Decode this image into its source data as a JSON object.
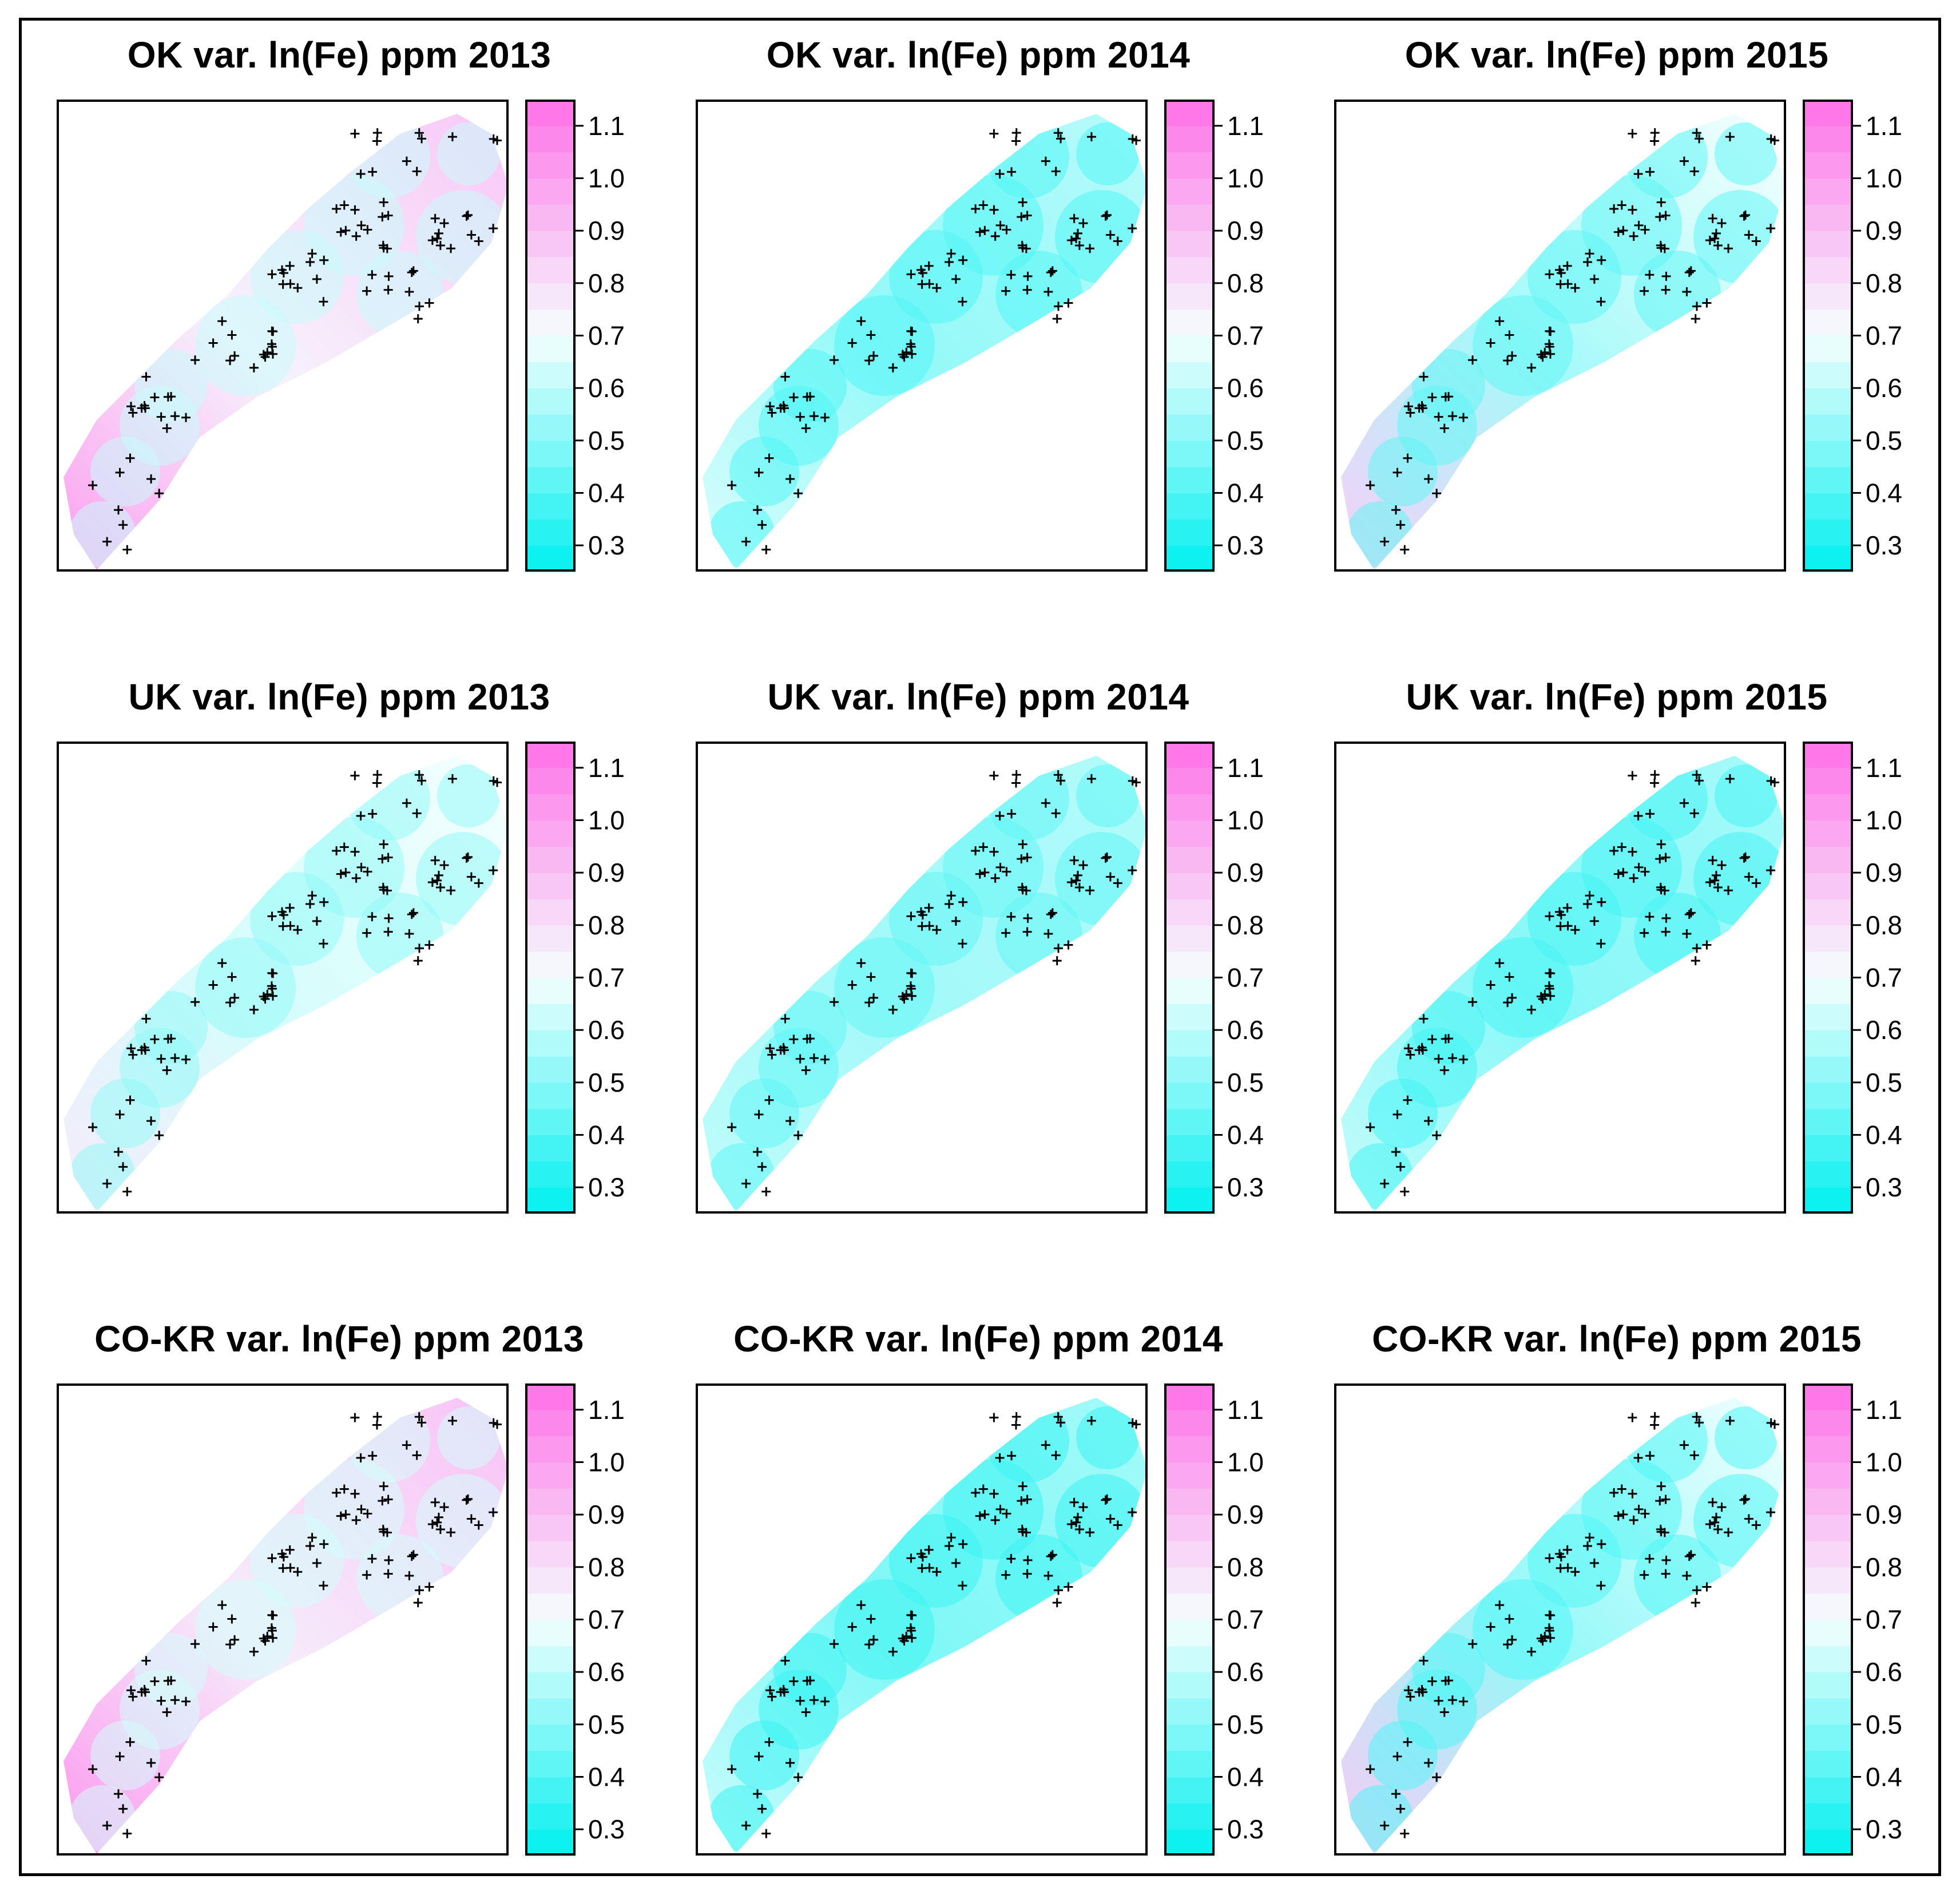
{
  "figure": {
    "variable": "ln(Fe) ppm",
    "years": [
      "2013",
      "2014",
      "2015"
    ],
    "methods": [
      "OK",
      "UK",
      "CO-KR"
    ]
  },
  "colors": {
    "low": "#00f0f0",
    "mid": "#f5fffe",
    "high": "#ff70e8",
    "point": "#000000",
    "frame": "#000000"
  },
  "chart_data": [
    {
      "type": "heatmap",
      "title": "OK var. ln(Fe) ppm 2013",
      "method": "OK",
      "year": "2013",
      "base_level": 0.74,
      "pink_bias": 0.85,
      "colorbar": {
        "range": [
          0.25,
          1.15
        ],
        "ticks": [
          "0.3",
          "0.4",
          "0.5",
          "0.6",
          "0.7",
          "0.8",
          "0.9",
          "1.0",
          "1.1"
        ]
      }
    },
    {
      "type": "heatmap",
      "title": "OK var. ln(Fe) ppm 2014",
      "method": "OK",
      "year": "2014",
      "base_level": 0.52,
      "pink_bias": 0.25,
      "colorbar": {
        "range": [
          0.25,
          1.15
        ],
        "ticks": [
          "0.3",
          "0.4",
          "0.5",
          "0.6",
          "0.7",
          "0.8",
          "0.9",
          "1.0",
          "1.1"
        ]
      }
    },
    {
      "type": "heatmap",
      "title": "OK var. ln(Fe) ppm 2015",
      "method": "OK",
      "year": "2015",
      "base_level": 0.55,
      "pink_bias": 0.6,
      "colorbar": {
        "range": [
          0.25,
          1.15
        ],
        "ticks": [
          "0.3",
          "0.4",
          "0.5",
          "0.6",
          "0.7",
          "0.8",
          "0.9",
          "1.0",
          "1.1"
        ]
      }
    },
    {
      "type": "heatmap",
      "title": "UK var. ln(Fe) ppm 2013",
      "method": "UK",
      "year": "2013",
      "base_level": 0.64,
      "pink_bias": 0.3,
      "colorbar": {
        "range": [
          0.25,
          1.15
        ],
        "ticks": [
          "0.3",
          "0.4",
          "0.5",
          "0.6",
          "0.7",
          "0.8",
          "0.9",
          "1.0",
          "1.1"
        ]
      }
    },
    {
      "type": "heatmap",
      "title": "UK var. ln(Fe) ppm 2014",
      "method": "UK",
      "year": "2014",
      "base_level": 0.55,
      "pink_bias": 0.1,
      "colorbar": {
        "range": [
          0.25,
          1.15
        ],
        "ticks": [
          "0.3",
          "0.4",
          "0.5",
          "0.6",
          "0.7",
          "0.8",
          "0.9",
          "1.0",
          "1.1"
        ]
      }
    },
    {
      "type": "heatmap",
      "title": "UK var. ln(Fe) ppm 2015",
      "method": "UK",
      "year": "2015",
      "base_level": 0.5,
      "pink_bias": 0.2,
      "colorbar": {
        "range": [
          0.25,
          1.15
        ],
        "ticks": [
          "0.3",
          "0.4",
          "0.5",
          "0.6",
          "0.7",
          "0.8",
          "0.9",
          "1.0",
          "1.1"
        ]
      }
    },
    {
      "type": "heatmap",
      "title": "CO-KR var. ln(Fe) ppm 2013",
      "method": "CO-KR",
      "year": "2013",
      "base_level": 0.76,
      "pink_bias": 0.9,
      "colorbar": {
        "range": [
          0.25,
          1.15
        ],
        "ticks": [
          "0.3",
          "0.4",
          "0.5",
          "0.6",
          "0.7",
          "0.8",
          "0.9",
          "1.0",
          "1.1"
        ]
      }
    },
    {
      "type": "heatmap",
      "title": "CO-KR var. ln(Fe) ppm 2014",
      "method": "CO-KR",
      "year": "2014",
      "base_level": 0.48,
      "pink_bias": 0.25,
      "colorbar": {
        "range": [
          0.25,
          1.15
        ],
        "ticks": [
          "0.3",
          "0.4",
          "0.5",
          "0.6",
          "0.7",
          "0.8",
          "0.9",
          "1.0",
          "1.1"
        ]
      }
    },
    {
      "type": "heatmap",
      "title": "CO-KR var. ln(Fe) ppm 2015",
      "method": "CO-KR",
      "year": "2015",
      "base_level": 0.52,
      "pink_bias": 0.65,
      "colorbar": {
        "range": [
          0.25,
          1.15
        ],
        "ticks": [
          "0.3",
          "0.4",
          "0.5",
          "0.6",
          "0.7",
          "0.8",
          "0.9",
          "1.0",
          "1.1"
        ]
      }
    }
  ]
}
